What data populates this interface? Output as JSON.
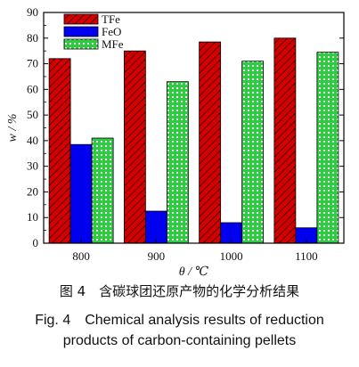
{
  "chart_data": {
    "type": "bar",
    "categories": [
      "800",
      "900",
      "1000",
      "1100"
    ],
    "series": [
      {
        "name": "TFe",
        "values": [
          72,
          75,
          78.5,
          80
        ],
        "color": "#d40000",
        "pattern": "diagonal-hatch"
      },
      {
        "name": "FeO",
        "values": [
          38.5,
          12.5,
          8,
          6
        ],
        "color": "#0000ee",
        "pattern": "solid"
      },
      {
        "name": "MFe",
        "values": [
          41,
          63,
          71,
          74.5
        ],
        "color": "#22cc22",
        "pattern": "grid"
      }
    ],
    "xlabel": "θ / ℃",
    "ylabel": "w / %",
    "ylim": [
      0,
      90
    ],
    "yticks": [
      "0",
      "10",
      "20",
      "30",
      "40",
      "50",
      "60",
      "70",
      "80",
      "90"
    ],
    "legend_position": "top-left"
  },
  "caption": {
    "cn": "图 4　含碳球团还原产物的化学分析结果",
    "en_line1": "Fig. 4　Chemical analysis results of reduction",
    "en_line2": "products of carbon-containing pellets"
  }
}
